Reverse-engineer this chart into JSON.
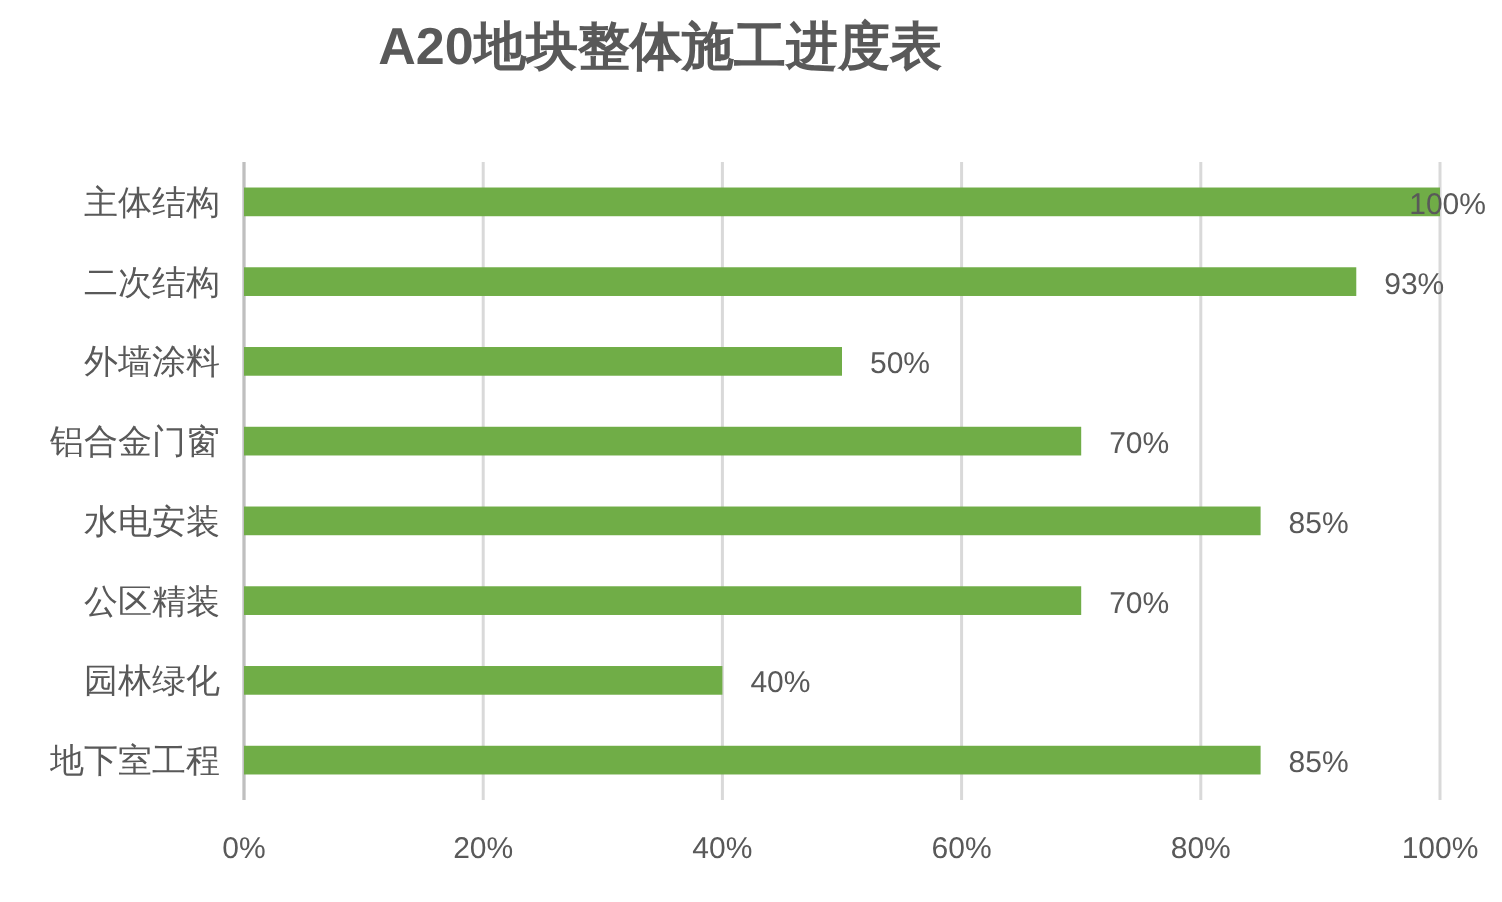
{
  "chart_data": {
    "type": "bar",
    "orientation": "horizontal",
    "title": "A20地块整体施工进度表",
    "categories": [
      "主体结构",
      "二次结构",
      "外墙涂料",
      "铝合金门窗",
      "水电安装",
      "公区精装",
      "园林绿化",
      "地下室工程"
    ],
    "values": [
      100,
      93,
      50,
      70,
      85,
      70,
      40,
      85
    ],
    "value_labels": [
      "100%",
      "93%",
      "50%",
      "70%",
      "85%",
      "70%",
      "40%",
      "85%"
    ],
    "color": "#70ad47",
    "xlim": [
      0,
      100
    ],
    "xticks": [
      {
        "value": 0,
        "label": "0%"
      },
      {
        "value": 20,
        "label": "20%"
      },
      {
        "value": 40,
        "label": "40%"
      },
      {
        "value": 60,
        "label": "60%"
      },
      {
        "value": 80,
        "label": "80%"
      },
      {
        "value": 100,
        "label": "100%"
      }
    ],
    "grid": "x"
  }
}
